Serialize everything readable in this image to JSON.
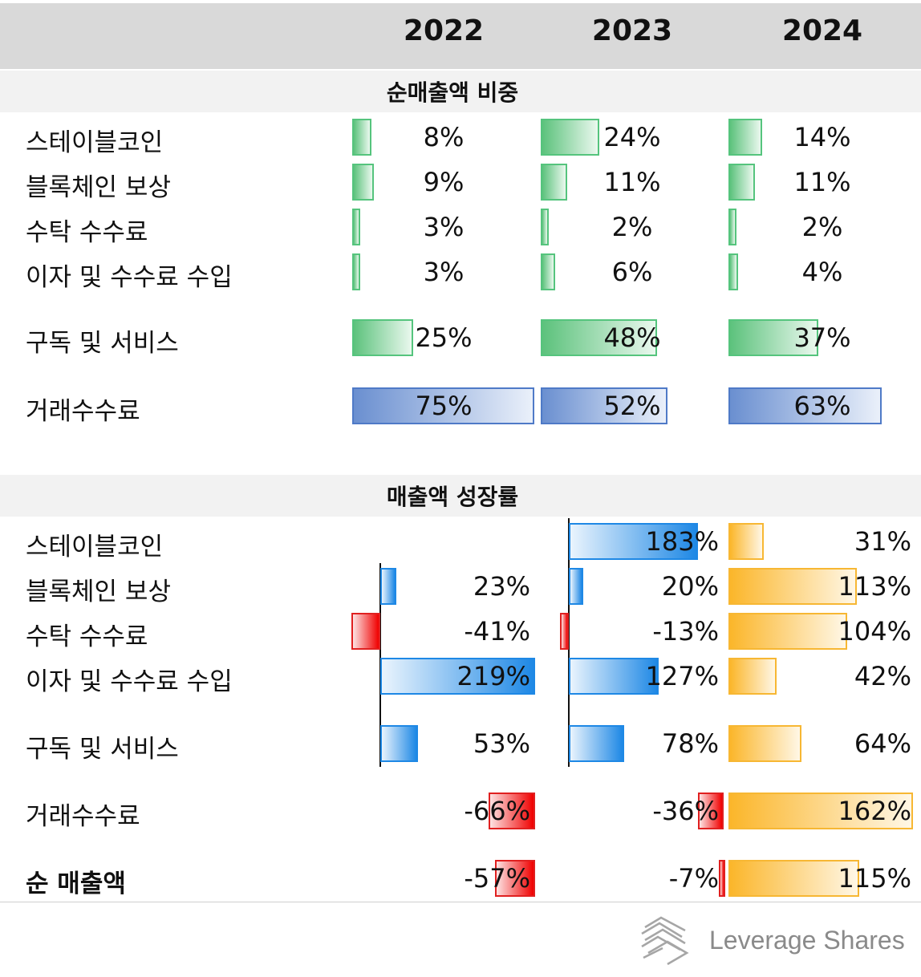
{
  "header": {
    "years": [
      "2022",
      "2023",
      "2024"
    ]
  },
  "colors": {
    "share_green": "#5cc27c",
    "share_blue": "#6a8fd0",
    "growth_positive": "#1e88e5",
    "growth_negative": "#f00000",
    "growth_2024": "#fbb62a"
  },
  "chart_data": [
    {
      "type": "bar",
      "title": "순매출액 비중",
      "categories": [
        "스테이블코인",
        "블록체인 보상",
        "수탁 수수료",
        "이자 및 수수료 수입",
        "구독 및 서비스",
        "거래수수료"
      ],
      "series": [
        {
          "name": "2022",
          "values": [
            8,
            9,
            3,
            3,
            25,
            75
          ],
          "labels": [
            "8%",
            "9%",
            "3%",
            "3%",
            "25%",
            "75%"
          ]
        },
        {
          "name": "2023",
          "values": [
            24,
            11,
            2,
            6,
            48,
            52
          ],
          "labels": [
            "24%",
            "11%",
            "2%",
            "6%",
            "48%",
            "52%"
          ]
        },
        {
          "name": "2024",
          "values": [
            14,
            11,
            2,
            4,
            37,
            63
          ],
          "labels": [
            "14%",
            "11%",
            "2%",
            "4%",
            "37%",
            "63%"
          ]
        }
      ],
      "bold_rows": []
    },
    {
      "type": "bar",
      "title": "매출액 성장률",
      "categories": [
        "스테이블코인",
        "블록체인 보상",
        "수탁 수수료",
        "이자 및 수수료 수입",
        "구독 및 서비스",
        "거래수수료",
        "순 매출액"
      ],
      "series": [
        {
          "name": "2022",
          "values": [
            null,
            23,
            -41,
            219,
            53,
            -66,
            -57
          ],
          "labels": [
            "",
            "23%",
            "-41%",
            "219%",
            "53%",
            "-66%",
            "-57%"
          ]
        },
        {
          "name": "2023",
          "values": [
            183,
            20,
            -13,
            127,
            78,
            -36,
            -7
          ],
          "labels": [
            "183%",
            "20%",
            "-13%",
            "127%",
            "78%",
            "-36%",
            "-7%"
          ]
        },
        {
          "name": "2024",
          "values": [
            31,
            113,
            104,
            42,
            64,
            162,
            115
          ],
          "labels": [
            "31%",
            "113%",
            "104%",
            "42%",
            "64%",
            "162%",
            "115%"
          ]
        }
      ],
      "bold_rows": [
        "순 매출액"
      ]
    }
  ],
  "logo": {
    "text": "Leverage Shares",
    "icon": "leverage-shares-logo-icon"
  }
}
